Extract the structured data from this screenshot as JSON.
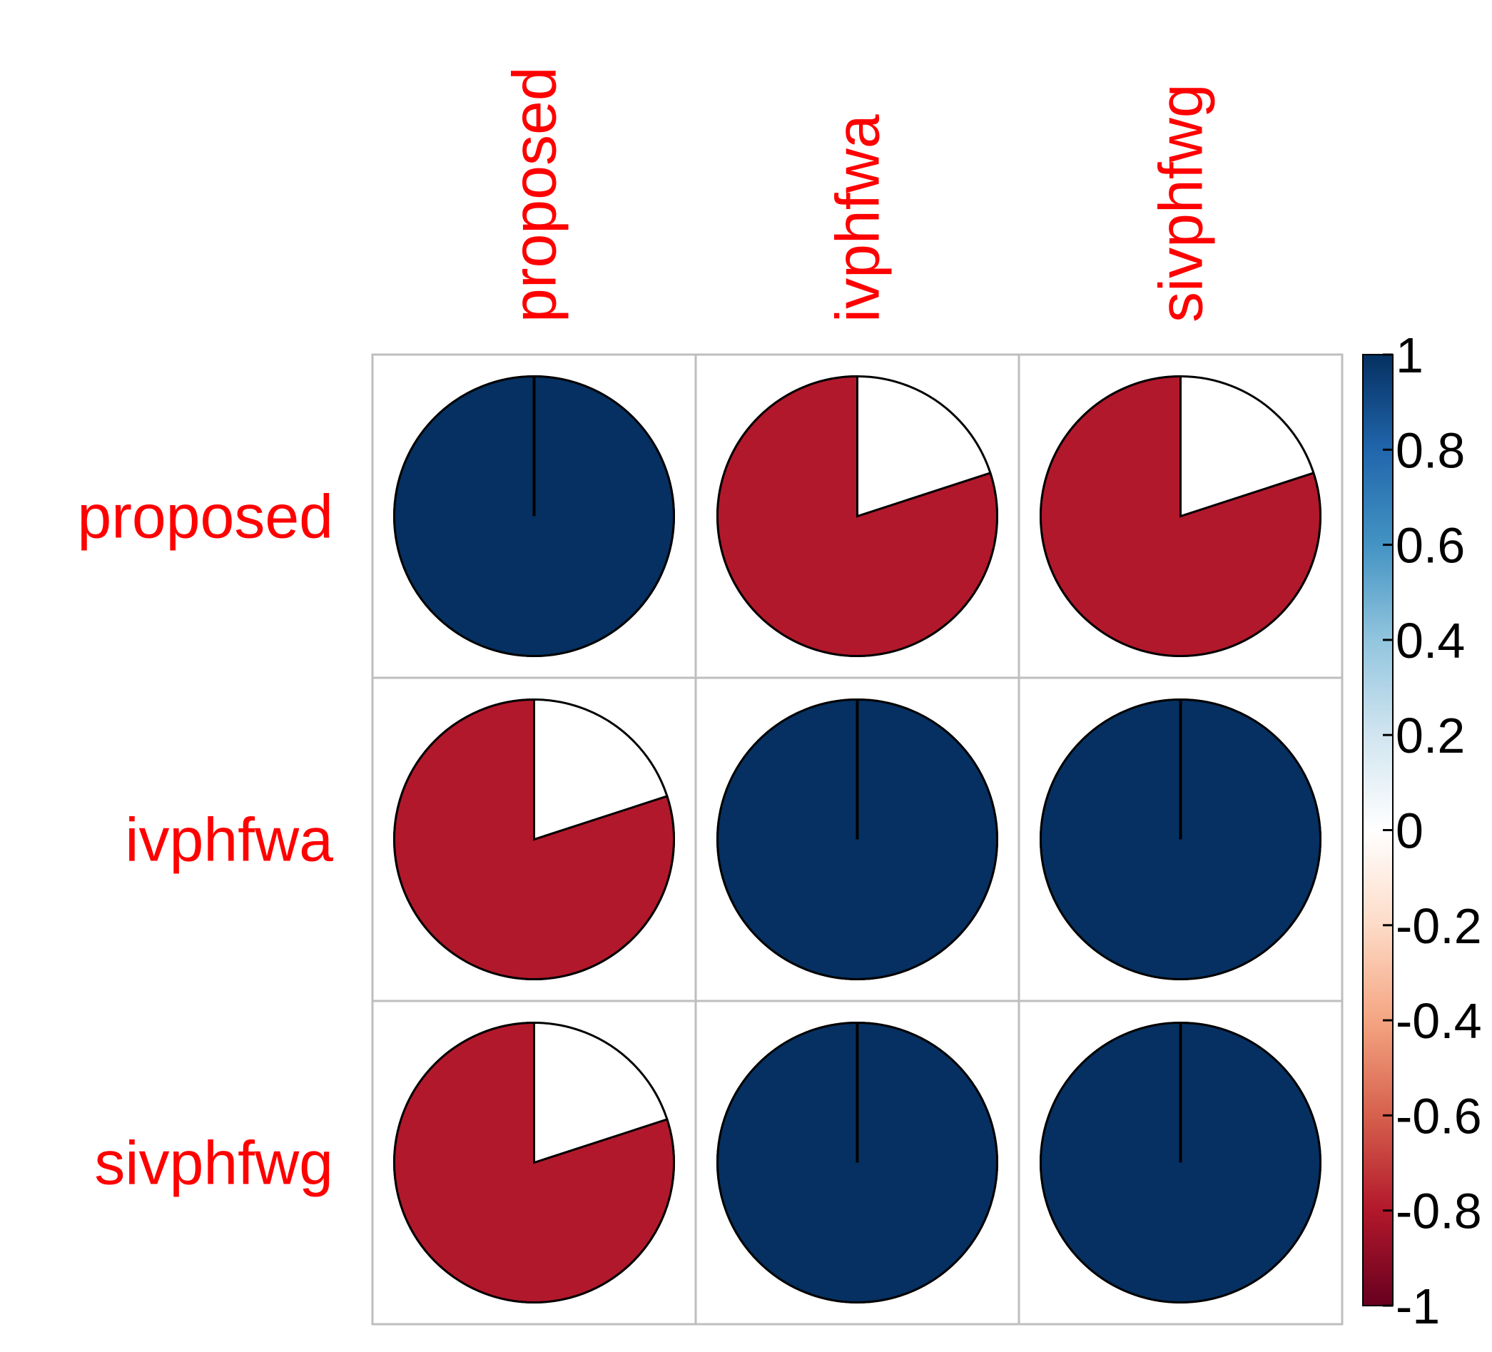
{
  "chart_data": {
    "type": "heatmap",
    "style": "pie",
    "variables": [
      "proposed",
      "ivphfwa",
      "sivphfwg"
    ],
    "matrix": [
      [
        1,
        -0.8,
        -0.8
      ],
      [
        -0.8,
        1,
        1
      ],
      [
        -0.8,
        1,
        1
      ]
    ],
    "colorbar": {
      "ticks": [
        "1",
        "0.8",
        "0.6",
        "0.4",
        "0.2",
        "0",
        "-0.2",
        "-0.4",
        "-0.6",
        "-0.8",
        "-1"
      ],
      "range": [
        -1,
        1
      ]
    },
    "colors": {
      "label": "#ff0000",
      "positive_strong": "#053061",
      "negative_strong": "#67001f",
      "neutral": "#ffffff",
      "grid": "#bebebe"
    }
  }
}
